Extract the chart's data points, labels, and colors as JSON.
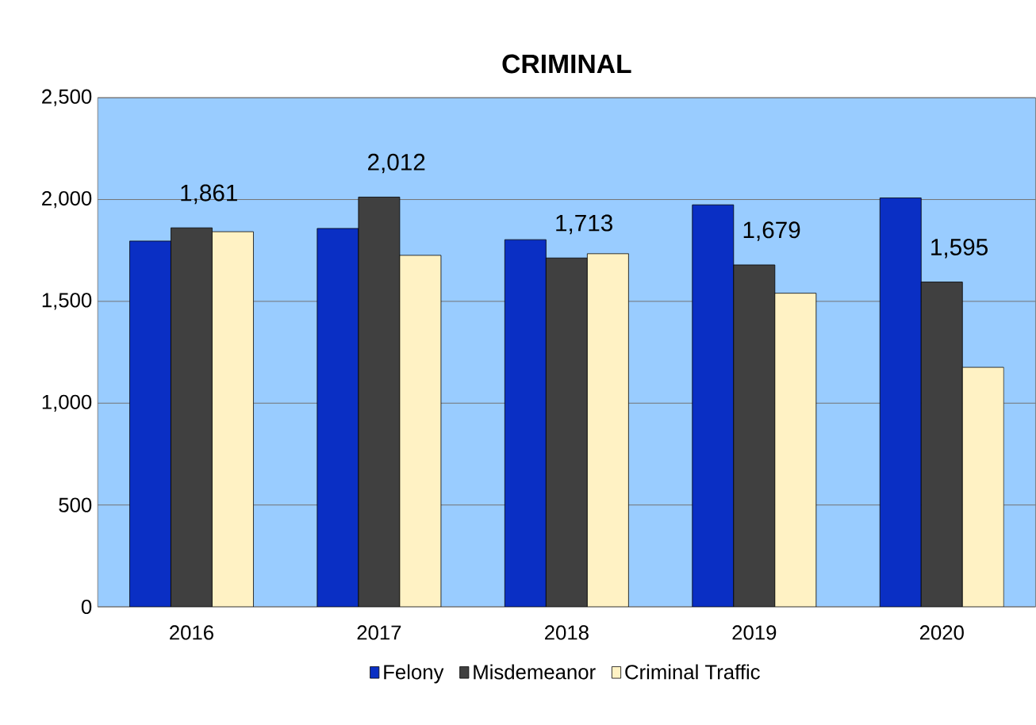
{
  "chart_data": {
    "type": "bar",
    "title": "CRIMINAL",
    "categories": [
      "2016",
      "2017",
      "2018",
      "2019",
      "2020"
    ],
    "series": [
      {
        "name": "Felony",
        "color": "#0a2fc4",
        "values": [
          1796,
          1858,
          1803,
          1974,
          2008
        ]
      },
      {
        "name": "Misdemeanor",
        "color": "#404040",
        "values": [
          1861,
          2012,
          1713,
          1679,
          1595
        ],
        "value_labels": [
          "1,861",
          "2,012",
          "1,713",
          "1,679",
          "1,595"
        ]
      },
      {
        "name": "Criminal Traffic",
        "color": "#fff2c4",
        "values": [
          1842,
          1726,
          1734,
          1540,
          1176
        ]
      }
    ],
    "ylim": [
      0,
      2500
    ],
    "yticks": [
      {
        "value": 0,
        "label": "0"
      },
      {
        "value": 500,
        "label": "500"
      },
      {
        "value": 1000,
        "label": "1,000"
      },
      {
        "value": 1500,
        "label": "1,500"
      },
      {
        "value": 2000,
        "label": "2,000"
      },
      {
        "value": 2500,
        "label": "2,500"
      }
    ],
    "grid": "y",
    "legend": "bottom"
  }
}
